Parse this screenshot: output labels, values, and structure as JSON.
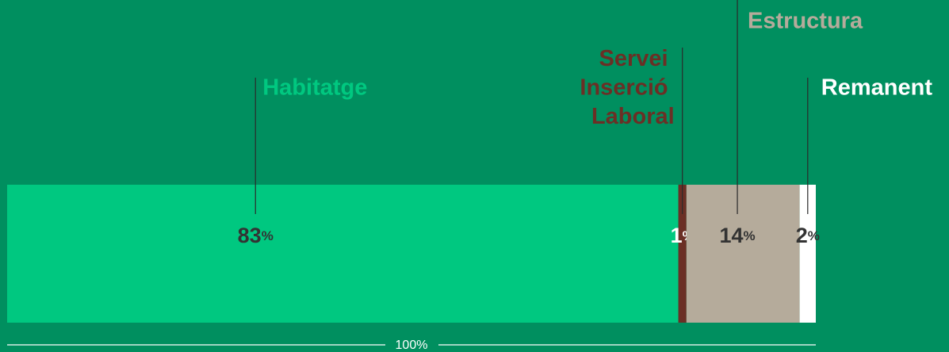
{
  "chart_data": {
    "type": "stacked-bar-horizontal",
    "xlim": [
      0,
      100
    ],
    "total_label": "100%",
    "series": [
      {
        "name": "Habitatge",
        "color": "#00c880",
        "values": [
          83
        ],
        "value_labels": [
          "83%"
        ]
      },
      {
        "name": "Servei Inserció Laboral",
        "color": "#6b2f25",
        "values": [
          1
        ],
        "value_labels": [
          "1%"
        ]
      },
      {
        "name": "Estructura",
        "color": "#b5ab9b",
        "values": [
          14
        ],
        "value_labels": [
          "14%"
        ]
      },
      {
        "name": "Remanent",
        "color": "#ffffff",
        "values": [
          2
        ],
        "value_labels": [
          "2%"
        ]
      }
    ]
  }
}
